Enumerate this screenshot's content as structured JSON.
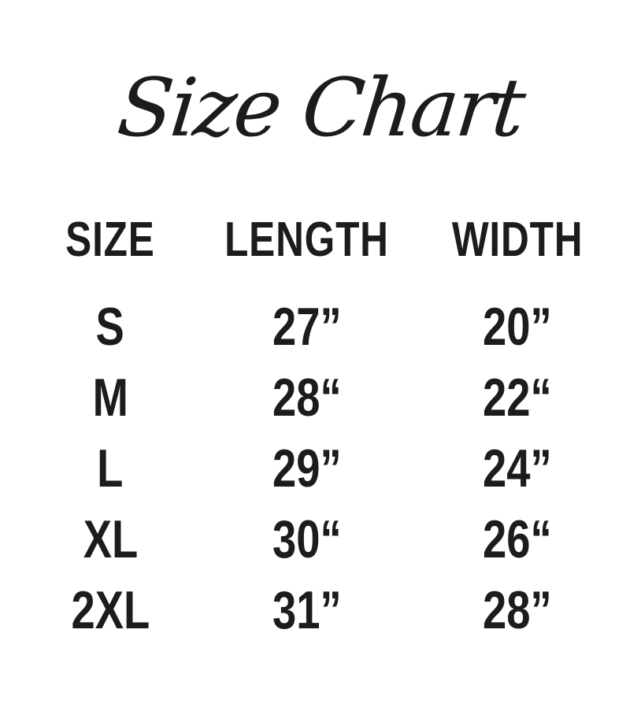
{
  "title": "Size Chart",
  "table": {
    "headers": [
      "SIZE",
      "LENGTH",
      "WIDTH"
    ],
    "rows": [
      {
        "size": "S",
        "length": "27”",
        "width": "20”"
      },
      {
        "size": "M",
        "length": "28“",
        "width": "22“"
      },
      {
        "size": "L",
        "length": "29”",
        "width": "24”"
      },
      {
        "size": "XL",
        "length": "30“",
        "width": "26“"
      },
      {
        "size": "2XL",
        "length": "31”",
        "width": "28”"
      }
    ]
  },
  "chart_data": {
    "type": "table",
    "title": "Size Chart",
    "columns": [
      "SIZE",
      "LENGTH",
      "WIDTH"
    ],
    "rows": [
      [
        "S",
        "27\"",
        "20\""
      ],
      [
        "M",
        "28\"",
        "22\""
      ],
      [
        "L",
        "29\"",
        "24\""
      ],
      [
        "XL",
        "30\"",
        "26\""
      ],
      [
        "2XL",
        "31\"",
        "28\""
      ]
    ],
    "units": "inches",
    "layout": "three centered columns, header row above five size rows"
  },
  "colors": {
    "text": "#1d1c1a",
    "background": "#ffffff"
  }
}
